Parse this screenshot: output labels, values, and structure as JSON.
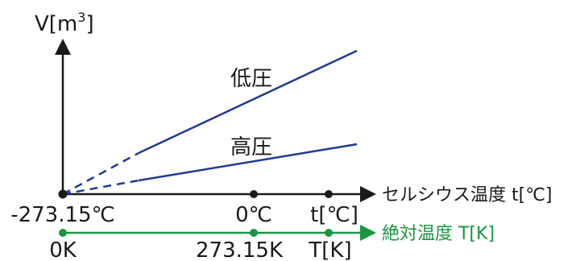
{
  "diagram": {
    "y_axis_label": "V[m",
    "y_axis_label_sup": "3",
    "y_axis_label_end": "]",
    "low_pressure_label": "低圧",
    "high_pressure_label": "高圧",
    "celsius_axis_label": "セルシウス温度 t[℃]",
    "kelvin_axis_label": "絶対温度 T[K]",
    "celsius_ticks": [
      "-273.15℃",
      "0℃",
      "t[℃]"
    ],
    "kelvin_ticks": [
      "0K",
      "273.15K",
      "T[K]"
    ]
  },
  "colors": {
    "axis": "#1a1a1a",
    "line": "#1f3a93",
    "kelvin": "#1a9641"
  }
}
